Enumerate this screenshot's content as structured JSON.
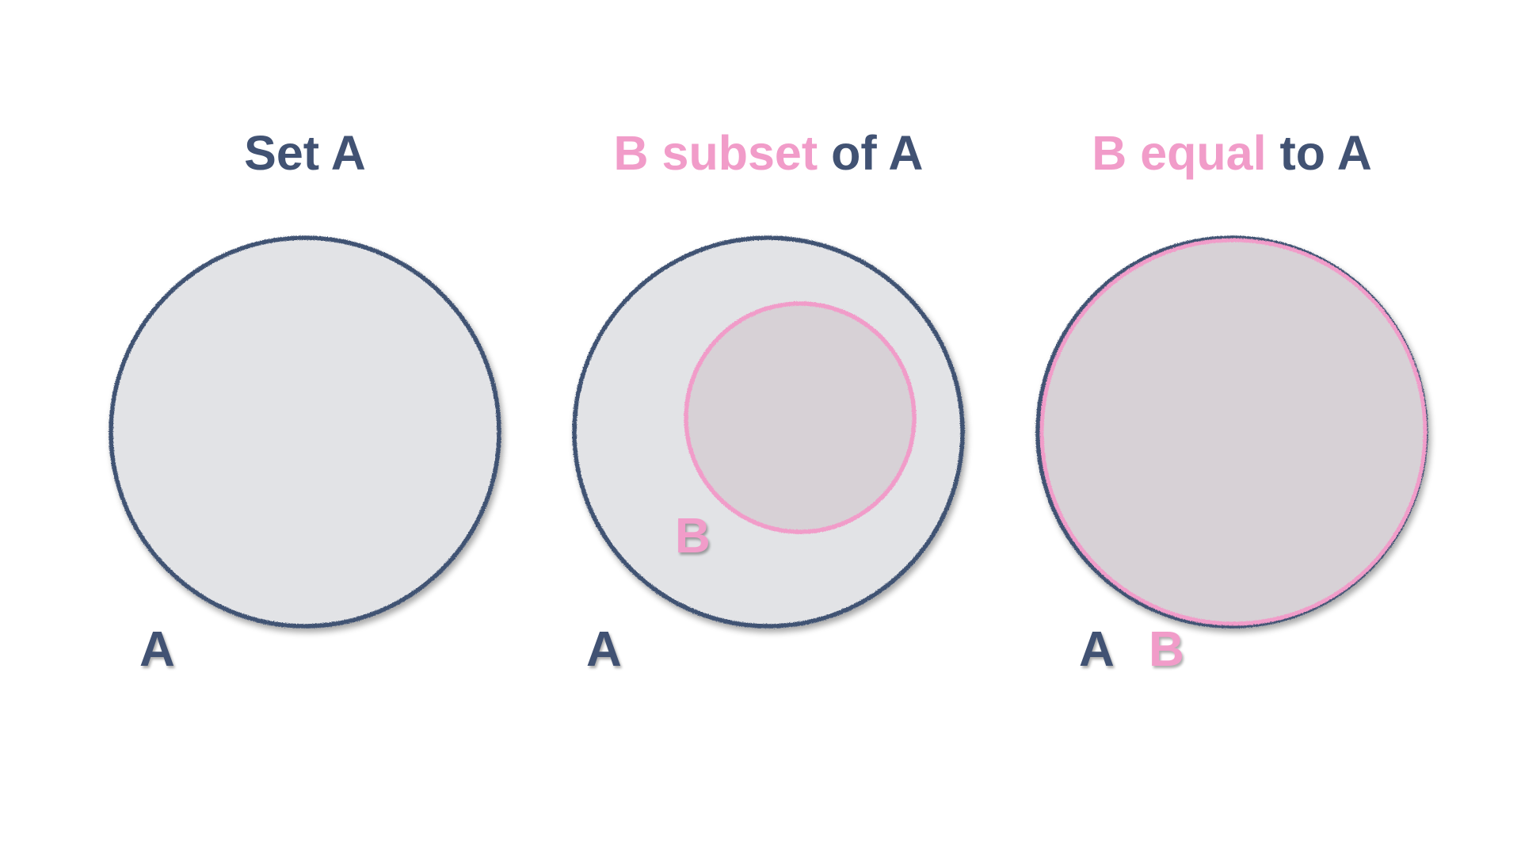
{
  "colors": {
    "set_a_outline": "#415273",
    "set_b_outline": "#f19cc9",
    "set_a_fill": "#e2e3e6",
    "set_b_fill": "#d7d1d6",
    "background": "#ffffff"
  },
  "panels": [
    {
      "title": {
        "part1": "",
        "part2": "Set A"
      },
      "labels": {
        "a": "A",
        "b": ""
      }
    },
    {
      "title": {
        "part1": "B subset",
        "part2": "of A"
      },
      "labels": {
        "a": "A",
        "b": "B"
      }
    },
    {
      "title": {
        "part1": "B equal",
        "part2": "to A"
      },
      "labels": {
        "a": "A",
        "b": "B"
      }
    }
  ]
}
